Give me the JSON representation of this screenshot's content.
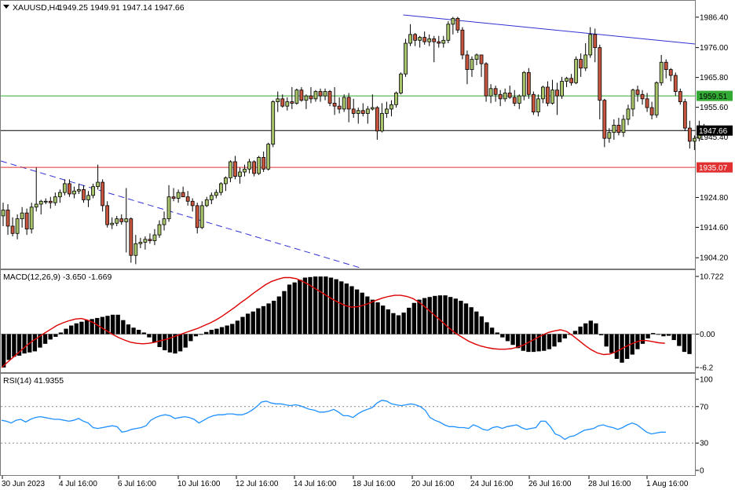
{
  "header": {
    "symbol_label": "XAUUSD,H4",
    "ohlc_label": "1949.25 1949.91 1947.14 1947.66"
  },
  "macd": {
    "label": "MACD(12,26,9) -3.650 -1.669",
    "scale_labels": [
      "10.722",
      "0.00",
      "-6.2"
    ]
  },
  "rsi": {
    "label": "RSI(14) 41.9355",
    "scale_labels": [
      "100",
      "70",
      "30",
      "0"
    ]
  },
  "price_scale_labels": [
    "1986.40",
    "1976.00",
    "1965.80",
    "1955.60",
    "1945.40",
    "1924.80",
    "1914.60",
    "1904.20"
  ],
  "time_labels": [
    "30 Jun 2023",
    "4 Jul 16:00",
    "6 Jul 16:00",
    "10 Jul 16:00",
    "12 Jul 16:00",
    "14 Jul 16:00",
    "18 Jul 16:00",
    "20 Jul 16:00",
    "24 Jul 16:00",
    "26 Jul 16:00",
    "28 Jul 16:00",
    "1 Aug 16:00"
  ],
  "price_levels": {
    "resistance": "1959.51",
    "current": "1947.66",
    "support": "1935.07"
  },
  "colors": {
    "bull_candle": "#a8c46a",
    "bear_candle": "#c8553d",
    "trendline_blue": "#3030d0",
    "resistance_line": "#33aa33",
    "support_line": "#e03030",
    "current_line": "#000000",
    "signal_line": "#dd0000",
    "rsi_line": "#1e90ff"
  },
  "chart_data": {
    "type": "candlestick",
    "instrument": "XAUUSD",
    "timeframe": "H4",
    "ylim": [
      1900.5,
      1992.0
    ],
    "candles": [
      [
        1918.5,
        1923.0,
        1915.0,
        1920.5
      ],
      [
        1920.5,
        1922.5,
        1912.0,
        1915.0
      ],
      [
        1915.0,
        1918.0,
        1911.5,
        1912.5
      ],
      [
        1912.5,
        1919.0,
        1910.5,
        1917.5
      ],
      [
        1917.5,
        1921.5,
        1914.5,
        1919.5
      ],
      [
        1919.5,
        1921.0,
        1912.0,
        1914.0
      ],
      [
        1914.0,
        1923.0,
        1912.5,
        1921.5
      ],
      [
        1921.5,
        1935.0,
        1920.0,
        1922.5
      ],
      [
        1922.5,
        1924.0,
        1919.0,
        1923.5
      ],
      [
        1923.5,
        1924.5,
        1922.5,
        1923.5
      ],
      [
        1923.5,
        1925.0,
        1921.0,
        1923.0
      ],
      [
        1923.0,
        1926.5,
        1922.0,
        1925.0
      ],
      [
        1925.0,
        1927.5,
        1923.0,
        1926.5
      ],
      [
        1926.5,
        1931.0,
        1925.5,
        1929.5
      ],
      [
        1929.5,
        1931.0,
        1925.0,
        1926.0
      ],
      [
        1926.0,
        1928.5,
        1924.5,
        1927.0
      ],
      [
        1927.0,
        1929.5,
        1926.0,
        1927.5
      ],
      [
        1927.5,
        1929.0,
        1923.0,
        1924.0
      ],
      [
        1924.0,
        1927.0,
        1921.5,
        1925.5
      ],
      [
        1925.5,
        1929.5,
        1924.5,
        1928.5
      ],
      [
        1928.5,
        1936.0,
        1927.5,
        1930.0
      ],
      [
        1930.0,
        1931.0,
        1920.0,
        1922.0
      ],
      [
        1922.0,
        1923.5,
        1914.5,
        1915.5
      ],
      [
        1915.5,
        1918.0,
        1914.0,
        1916.0
      ],
      [
        1916.0,
        1918.5,
        1915.0,
        1917.5
      ],
      [
        1917.5,
        1919.0,
        1915.5,
        1916.5
      ],
      [
        1916.5,
        1928.0,
        1906.0,
        1917.5
      ],
      [
        1917.5,
        1918.0,
        1902.5,
        1905.0
      ],
      [
        1905.0,
        1912.0,
        1902.0,
        1909.0
      ],
      [
        1909.0,
        1911.0,
        1907.5,
        1909.5
      ],
      [
        1909.5,
        1911.5,
        1907.0,
        1910.5
      ],
      [
        1910.5,
        1912.5,
        1909.0,
        1910.0
      ],
      [
        1910.0,
        1914.0,
        1908.5,
        1912.0
      ],
      [
        1912.0,
        1917.0,
        1911.0,
        1915.5
      ],
      [
        1915.5,
        1920.0,
        1913.5,
        1917.5
      ],
      [
        1917.5,
        1929.0,
        1916.5,
        1925.0
      ],
      [
        1925.0,
        1928.0,
        1923.5,
        1924.5
      ],
      [
        1924.5,
        1927.5,
        1923.0,
        1926.5
      ],
      [
        1926.5,
        1928.5,
        1925.0,
        1925.0
      ],
      [
        1925.0,
        1927.0,
        1922.0,
        1923.5
      ],
      [
        1923.5,
        1924.5,
        1920.0,
        1922.0
      ],
      [
        1922.0,
        1923.0,
        1912.5,
        1914.5
      ],
      [
        1914.5,
        1923.5,
        1914.0,
        1922.0
      ],
      [
        1922.0,
        1925.0,
        1921.5,
        1924.0
      ],
      [
        1924.0,
        1926.5,
        1922.5,
        1925.5
      ],
      [
        1925.5,
        1927.5,
        1924.5,
        1926.5
      ],
      [
        1926.5,
        1930.0,
        1925.5,
        1929.5
      ],
      [
        1929.5,
        1932.0,
        1927.0,
        1931.5
      ],
      [
        1931.5,
        1937.5,
        1930.0,
        1937.0
      ],
      [
        1937.0,
        1939.0,
        1931.0,
        1932.0
      ],
      [
        1932.0,
        1935.0,
        1929.5,
        1933.5
      ],
      [
        1933.5,
        1936.0,
        1932.0,
        1934.5
      ],
      [
        1934.5,
        1938.0,
        1933.0,
        1937.0
      ],
      [
        1937.0,
        1937.5,
        1932.0,
        1933.0
      ],
      [
        1933.0,
        1939.0,
        1932.5,
        1938.5
      ],
      [
        1938.5,
        1940.5,
        1933.5,
        1934.5
      ],
      [
        1934.5,
        1943.5,
        1934.0,
        1943.0
      ],
      [
        1943.0,
        1958.0,
        1942.0,
        1957.5
      ],
      [
        1957.5,
        1961.0,
        1954.0,
        1958.5
      ],
      [
        1958.5,
        1960.0,
        1955.5,
        1956.0
      ],
      [
        1956.0,
        1959.0,
        1954.5,
        1957.5
      ],
      [
        1957.5,
        1962.5,
        1955.0,
        1957.0
      ],
      [
        1957.0,
        1962.0,
        1956.5,
        1961.5
      ],
      [
        1961.5,
        1962.5,
        1957.5,
        1958.0
      ],
      [
        1958.0,
        1960.0,
        1955.0,
        1959.5
      ],
      [
        1959.5,
        1962.5,
        1957.0,
        1958.5
      ],
      [
        1958.5,
        1961.5,
        1957.5,
        1961.0
      ],
      [
        1961.0,
        1962.0,
        1957.5,
        1959.5
      ],
      [
        1959.5,
        1962.0,
        1958.0,
        1961.0
      ],
      [
        1961.0,
        1961.5,
        1956.0,
        1957.0
      ],
      [
        1957.0,
        1962.5,
        1953.0,
        1956.0
      ],
      [
        1956.0,
        1959.0,
        1953.5,
        1955.0
      ],
      [
        1955.0,
        1960.0,
        1954.0,
        1959.0
      ],
      [
        1959.0,
        1960.5,
        1950.5,
        1955.0
      ],
      [
        1955.0,
        1958.5,
        1952.0,
        1953.5
      ],
      [
        1953.5,
        1955.5,
        1950.0,
        1954.5
      ],
      [
        1954.5,
        1957.0,
        1952.5,
        1953.5
      ],
      [
        1953.5,
        1956.0,
        1950.0,
        1955.0
      ],
      [
        1955.0,
        1960.0,
        1954.5,
        1955.5
      ],
      [
        1955.5,
        1956.0,
        1944.5,
        1947.5
      ],
      [
        1947.5,
        1957.0,
        1947.0,
        1953.5
      ],
      [
        1953.5,
        1957.5,
        1952.0,
        1955.0
      ],
      [
        1955.0,
        1958.0,
        1952.5,
        1956.5
      ],
      [
        1956.5,
        1961.0,
        1955.5,
        1960.5
      ],
      [
        1960.5,
        1967.5,
        1960.0,
        1967.0
      ],
      [
        1967.0,
        1979.0,
        1966.0,
        1977.5
      ],
      [
        1977.5,
        1984.0,
        1976.5,
        1980.5
      ],
      [
        1980.5,
        1981.0,
        1976.5,
        1978.5
      ],
      [
        1978.5,
        1980.0,
        1976.0,
        1979.5
      ],
      [
        1979.5,
        1981.5,
        1977.0,
        1978.0
      ],
      [
        1978.0,
        1980.5,
        1976.5,
        1979.0
      ],
      [
        1979.0,
        1980.0,
        1971.0,
        1978.0
      ],
      [
        1978.0,
        1980.0,
        1976.0,
        1977.5
      ],
      [
        1977.5,
        1980.0,
        1976.0,
        1978.5
      ],
      [
        1978.5,
        1985.0,
        1977.5,
        1984.0
      ],
      [
        1984.0,
        1986.5,
        1980.5,
        1986.0
      ],
      [
        1986.0,
        1986.5,
        1981.0,
        1982.0
      ],
      [
        1982.0,
        1983.0,
        1972.0,
        1973.5
      ],
      [
        1973.5,
        1975.0,
        1963.5,
        1968.5
      ],
      [
        1968.5,
        1973.0,
        1966.0,
        1972.0
      ],
      [
        1972.0,
        1974.0,
        1970.0,
        1973.5
      ],
      [
        1973.5,
        1973.5,
        1966.0,
        1970.5
      ],
      [
        1970.5,
        1971.0,
        1957.5,
        1959.5
      ],
      [
        1959.5,
        1963.5,
        1957.0,
        1962.0
      ],
      [
        1962.0,
        1963.0,
        1957.5,
        1960.0
      ],
      [
        1960.0,
        1961.5,
        1956.0,
        1958.5
      ],
      [
        1958.5,
        1962.0,
        1957.5,
        1960.5
      ],
      [
        1960.5,
        1963.0,
        1958.5,
        1959.0
      ],
      [
        1959.0,
        1961.5,
        1956.0,
        1957.0
      ],
      [
        1957.0,
        1960.0,
        1955.0,
        1959.5
      ],
      [
        1959.5,
        1968.0,
        1958.0,
        1967.5
      ],
      [
        1967.5,
        1969.0,
        1958.5,
        1960.0
      ],
      [
        1960.0,
        1961.0,
        1953.0,
        1954.0
      ],
      [
        1954.0,
        1960.0,
        1952.5,
        1958.5
      ],
      [
        1958.5,
        1963.0,
        1957.0,
        1962.5
      ],
      [
        1962.5,
        1964.5,
        1956.0,
        1957.0
      ],
      [
        1957.0,
        1965.0,
        1956.5,
        1961.5
      ],
      [
        1961.5,
        1964.0,
        1953.0,
        1959.5
      ],
      [
        1959.5,
        1966.0,
        1958.5,
        1964.5
      ],
      [
        1964.5,
        1966.0,
        1962.5,
        1965.5
      ],
      [
        1965.5,
        1967.0,
        1963.0,
        1964.0
      ],
      [
        1964.0,
        1973.0,
        1963.5,
        1972.0
      ],
      [
        1972.0,
        1974.0,
        1966.0,
        1969.0
      ],
      [
        1969.0,
        1977.5,
        1968.0,
        1973.5
      ],
      [
        1973.5,
        1983.0,
        1972.5,
        1980.5
      ],
      [
        1980.5,
        1982.5,
        1971.0,
        1976.0
      ],
      [
        1976.0,
        1977.0,
        1951.5,
        1958.0
      ],
      [
        1958.0,
        1958.5,
        1942.0,
        1945.0
      ],
      [
        1945.0,
        1948.5,
        1943.5,
        1947.0
      ],
      [
        1947.0,
        1951.5,
        1944.5,
        1949.5
      ],
      [
        1949.5,
        1952.0,
        1946.0,
        1947.0
      ],
      [
        1947.0,
        1953.0,
        1945.5,
        1951.5
      ],
      [
        1951.5,
        1956.5,
        1949.5,
        1955.0
      ],
      [
        1955.0,
        1962.0,
        1952.5,
        1961.5
      ],
      [
        1961.5,
        1963.0,
        1957.5,
        1960.0
      ],
      [
        1960.0,
        1961.5,
        1956.5,
        1958.5
      ],
      [
        1958.5,
        1960.5,
        1954.0,
        1955.5
      ],
      [
        1955.5,
        1957.5,
        1951.5,
        1953.0
      ],
      [
        1953.0,
        1964.5,
        1952.0,
        1964.0
      ],
      [
        1964.0,
        1973.5,
        1963.0,
        1971.0
      ],
      [
        1971.0,
        1972.0,
        1965.5,
        1968.5
      ],
      [
        1968.5,
        1969.0,
        1964.5,
        1966.5
      ],
      [
        1966.5,
        1967.5,
        1959.5,
        1961.0
      ],
      [
        1961.0,
        1962.0,
        1956.5,
        1957.5
      ],
      [
        1957.5,
        1958.5,
        1947.5,
        1948.5
      ],
      [
        1948.5,
        1951.0,
        1941.5,
        1944.0
      ],
      [
        1944.0,
        1946.0,
        1941.0,
        1945.0
      ],
      [
        1945.0,
        1951.0,
        1944.0,
        1949.3
      ],
      [
        1949.25,
        1949.91,
        1947.14,
        1947.66
      ]
    ],
    "macd_histogram": [
      -6.2,
      -4.8,
      -4.2,
      -4.0,
      -3.6,
      -3.4,
      -3.2,
      -2.5,
      -1.8,
      -1.0,
      -0.5,
      0.3,
      1.0,
      1.6,
      2.0,
      2.3,
      2.6,
      2.8,
      3.0,
      3.2,
      3.4,
      3.6,
      3.6,
      2.6,
      1.8,
      1.2,
      0.8,
      0.3,
      -0.6,
      -1.5,
      -2.4,
      -3.0,
      -3.4,
      -3.6,
      -3.2,
      -2.5,
      -1.3,
      -0.4,
      0.0,
      0.4,
      0.8,
      1.0,
      1.3,
      1.6,
      1.9,
      2.5,
      3.2,
      3.8,
      4.2,
      4.8,
      5.2,
      5.7,
      6.2,
      7.0,
      8.0,
      9.2,
      9.6,
      10.1,
      10.5,
      10.6,
      10.7,
      10.7,
      10.7,
      10.5,
      10.2,
      9.8,
      9.4,
      8.9,
      8.3,
      7.7,
      7.0,
      6.4,
      5.9,
      5.3,
      4.6,
      3.9,
      3.5,
      4.0,
      4.9,
      5.8,
      6.4,
      6.7,
      6.9,
      7.1,
      7.2,
      7.2,
      6.9,
      6.6,
      6.2,
      5.7,
      5.0,
      4.2,
      3.3,
      2.2,
      1.2,
      0.3,
      -0.6,
      -1.3,
      -2.0,
      -2.6,
      -3.1,
      -3.3,
      -3.3,
      -3.2,
      -3.1,
      -2.8,
      -2.3,
      -1.5,
      -0.8,
      -0.1,
      0.6,
      1.4,
      2.0,
      2.5,
      2.0,
      -0.2,
      -2.3,
      -3.5,
      -4.6,
      -5.3,
      -4.6,
      -3.8,
      -2.8,
      -1.8,
      -0.8,
      0.2,
      -0.1,
      -0.4,
      -0.3,
      -1.1,
      -2.2,
      -3.3,
      -3.7
    ],
    "macd_signal": [
      -6.2,
      -5.2,
      -4.2,
      -3.2,
      -2.2,
      -1.3,
      -0.6,
      0.2,
      0.9,
      1.6,
      2.1,
      2.5,
      2.8,
      2.9,
      2.6,
      2.1,
      1.4,
      0.7,
      0.0,
      -0.6,
      -1.1,
      -1.5,
      -1.7,
      -1.8,
      -1.7,
      -1.5,
      -1.2,
      -0.9,
      -0.5,
      -0.1,
      0.3,
      0.7,
      1.1,
      1.6,
      2.1,
      2.7,
      3.4,
      4.2,
      5.0,
      5.9,
      6.7,
      7.6,
      8.4,
      9.2,
      9.8,
      10.2,
      10.5,
      10.5,
      10.3,
      9.8,
      9.2,
      8.5,
      7.8,
      7.1,
      6.4,
      5.8,
      5.3,
      5.0,
      5.1,
      5.4,
      5.8,
      6.3,
      6.7,
      7.0,
      7.2,
      7.2,
      7.0,
      6.6,
      5.9,
      5.0,
      4.0,
      3.0,
      2.0,
      1.0,
      0.1,
      -0.6,
      -1.3,
      -1.8,
      -2.2,
      -2.5,
      -2.7,
      -2.8,
      -2.8,
      -2.7,
      -2.4,
      -2.0,
      -1.4,
      -0.8,
      -0.2,
      0.3,
      0.6,
      0.8,
      0.5,
      -0.3,
      -1.2,
      -2.1,
      -2.9,
      -3.5,
      -3.8,
      -3.7,
      -3.3,
      -2.7,
      -2.1,
      -1.6,
      -1.2,
      -1.2,
      -1.4,
      -1.6,
      -1.7
    ],
    "rsi": [
      55,
      54,
      52,
      55,
      56,
      53,
      56,
      58,
      59,
      58,
      57,
      56,
      56,
      55,
      54,
      55,
      57,
      54,
      52,
      47,
      46,
      47,
      48,
      49,
      48,
      42,
      43,
      45,
      46,
      47,
      49,
      55,
      58,
      60,
      61,
      60,
      57,
      58,
      59,
      58,
      56,
      52,
      55,
      58,
      60,
      61,
      61,
      62,
      62,
      61,
      61,
      63,
      66,
      70,
      75,
      76,
      74,
      73,
      73,
      72,
      71,
      72,
      71,
      69,
      67,
      66,
      64,
      64,
      65,
      67,
      64,
      60,
      60,
      58,
      62,
      65,
      67,
      69,
      74,
      77,
      76,
      73,
      72,
      71,
      72,
      73,
      72,
      70,
      66,
      58,
      55,
      53,
      50,
      48,
      48,
      47,
      47,
      46,
      50,
      48,
      45,
      44,
      47,
      48,
      46,
      48,
      49,
      50,
      47,
      45,
      46,
      47,
      54,
      54,
      48,
      40,
      38,
      34,
      37,
      38,
      41,
      44,
      45,
      46,
      49,
      50,
      48,
      47,
      45,
      47,
      50,
      52,
      50,
      46,
      42,
      40,
      41,
      42,
      41.9
    ],
    "rsi_levels": [
      70,
      30
    ],
    "macd_range": [
      -6.2,
      10.722
    ],
    "rsi_range": [
      0,
      100
    ]
  }
}
